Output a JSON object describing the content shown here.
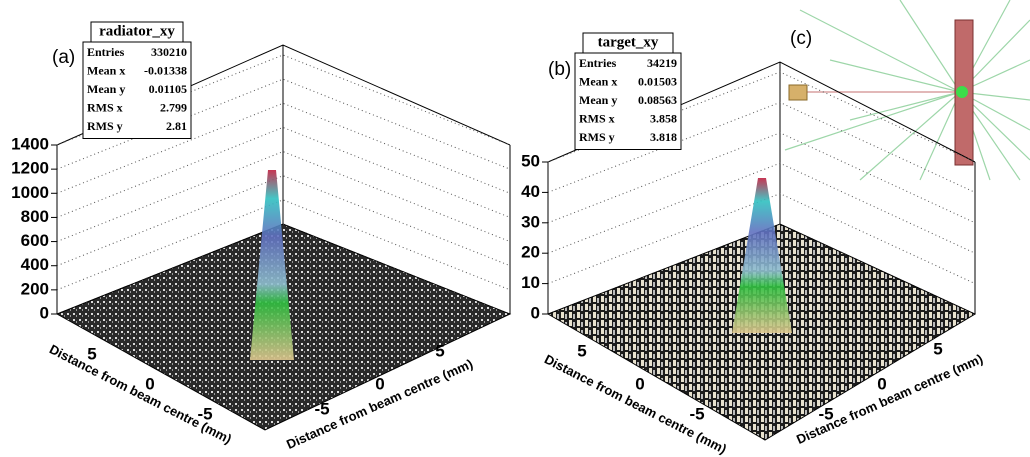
{
  "panels": [
    {
      "label": "(a)",
      "stats": {
        "title": "radiator_xy",
        "rows": [
          {
            "name": "Entries",
            "value": 330210
          },
          {
            "name": "Mean x",
            "value": -0.01338
          },
          {
            "name": "Mean y",
            "value": 0.01105
          },
          {
            "name": "RMS x",
            "value": 2.799
          },
          {
            "name": "RMS y",
            "value": 2.81
          }
        ]
      },
      "zticks": [
        0,
        200,
        400,
        600,
        800,
        1000,
        1200,
        1400
      ],
      "xticks": [
        5,
        0,
        -5
      ],
      "yticks": [
        -5,
        0,
        5
      ],
      "xlabel": "Distance from beam centre (mm)",
      "ylabel": "Distance from beam centre (mm)"
    },
    {
      "label": "(b)",
      "stats": {
        "title": "target_xy",
        "rows": [
          {
            "name": "Entries",
            "value": 34219
          },
          {
            "name": "Mean x",
            "value": 0.01503
          },
          {
            "name": "Mean y",
            "value": 0.08563
          },
          {
            "name": "RMS x",
            "value": 3.858
          },
          {
            "name": "RMS y",
            "value": 3.818
          }
        ]
      },
      "zticks": [
        0,
        10,
        20,
        30,
        40,
        50
      ],
      "xticks": [
        5,
        0,
        -5
      ],
      "yticks": [
        -5,
        0,
        5
      ],
      "xlabel": "Distance from beam centre (mm)",
      "ylabel": "Distance from beam centre (mm)"
    },
    {
      "label": "(c)"
    }
  ]
}
